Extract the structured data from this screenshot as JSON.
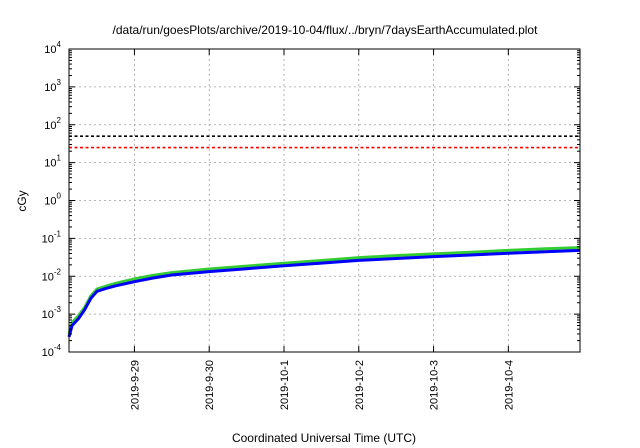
{
  "chart_data": {
    "type": "line",
    "title": "/data/run/goesPlots/archive/2019-10-04/flux/../bryn/7daysEarthAccumulated.plot",
    "xlabel": "Coordinated Universal Time (UTC)",
    "ylabel": "cGy",
    "yscale": "log",
    "ylim": [
      0.0001,
      10000
    ],
    "ytick_values": [
      0.0001,
      0.001,
      0.01,
      0.1,
      1,
      10,
      100,
      1000,
      10000
    ],
    "ytick_labels": [
      {
        "base": "10",
        "exp": "-4"
      },
      {
        "base": "10",
        "exp": "-3"
      },
      {
        "base": "10",
        "exp": "-2"
      },
      {
        "base": "10",
        "exp": "-1"
      },
      {
        "base": "10",
        "exp": "0"
      },
      {
        "base": "10",
        "exp": "1"
      },
      {
        "base": "10",
        "exp": "2"
      },
      {
        "base": "10",
        "exp": "3"
      },
      {
        "base": "10",
        "exp": "4"
      }
    ],
    "xlim": [
      "2019-09-28 03:00",
      "2019-10-04 23:00"
    ],
    "xtick_values": [
      "2019-09-29 00:00",
      "2019-09-30 00:00",
      "2019-10-01 00:00",
      "2019-10-02 00:00",
      "2019-10-03 00:00",
      "2019-10-04 00:00"
    ],
    "xtick_labels": [
      "2019-9-29",
      "2019-9-30",
      "2019-10-1",
      "2019-10-2",
      "2019-10-3",
      "2019-10-4"
    ],
    "grid": true,
    "hlines": [
      {
        "y": 50,
        "color": "#000000",
        "style": "dashed"
      },
      {
        "y": 25,
        "color": "#ff0000",
        "style": "dashed"
      }
    ],
    "series": [
      {
        "color": "#33cc33",
        "x": [
          "2019-09-28 03:00",
          "2019-09-28 04:00",
          "2019-09-28 06:00",
          "2019-09-28 08:00",
          "2019-09-28 10:00",
          "2019-09-28 12:00",
          "2019-09-28 15:00",
          "2019-09-28 18:00",
          "2019-09-29 00:00",
          "2019-09-29 06:00",
          "2019-09-29 12:00",
          "2019-09-30 00:00",
          "2019-09-30 12:00",
          "2019-10-01 00:00",
          "2019-10-01 12:00",
          "2019-10-02 00:00",
          "2019-10-02 12:00",
          "2019-10-03 00:00",
          "2019-10-03 12:00",
          "2019-10-04 00:00",
          "2019-10-04 12:00",
          "2019-10-04 23:00"
        ],
        "y": [
          0.0003,
          0.0006,
          0.0009,
          0.0015,
          0.003,
          0.0046,
          0.0055,
          0.0065,
          0.0085,
          0.0105,
          0.0125,
          0.0155,
          0.0185,
          0.022,
          0.026,
          0.031,
          0.035,
          0.039,
          0.043,
          0.048,
          0.053,
          0.057
        ]
      },
      {
        "color": "#0000ff",
        "x": [
          "2019-09-28 03:00",
          "2019-09-28 04:00",
          "2019-09-28 06:00",
          "2019-09-28 08:00",
          "2019-09-28 10:00",
          "2019-09-28 12:00",
          "2019-09-28 15:00",
          "2019-09-28 18:00",
          "2019-09-29 00:00",
          "2019-09-29 06:00",
          "2019-09-29 12:00",
          "2019-09-30 00:00",
          "2019-09-30 12:00",
          "2019-10-01 00:00",
          "2019-10-01 12:00",
          "2019-10-02 00:00",
          "2019-10-02 12:00",
          "2019-10-03 00:00",
          "2019-10-03 12:00",
          "2019-10-04 00:00",
          "2019-10-04 12:00",
          "2019-10-04 23:00"
        ],
        "y": [
          0.00025,
          0.0005,
          0.00075,
          0.0013,
          0.0026,
          0.004,
          0.0048,
          0.0056,
          0.0072,
          0.009,
          0.0108,
          0.0133,
          0.0158,
          0.019,
          0.0223,
          0.0262,
          0.0295,
          0.033,
          0.0363,
          0.0405,
          0.0445,
          0.048
        ]
      }
    ]
  }
}
